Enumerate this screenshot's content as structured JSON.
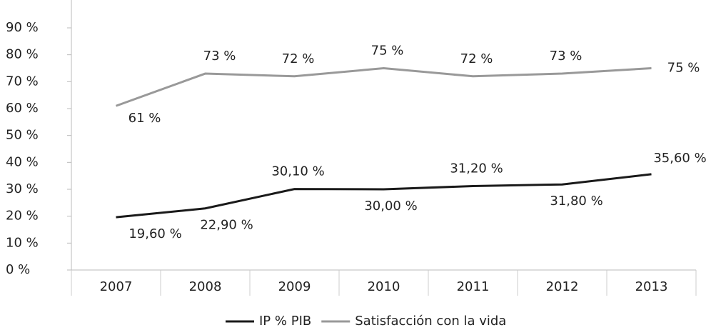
{
  "chart_data": {
    "type": "line",
    "categories": [
      "2007",
      "2008",
      "2009",
      "2010",
      "2011",
      "2012",
      "2013"
    ],
    "series": [
      {
        "name": "IP % PIB",
        "color": "#1a1a1a",
        "values": [
          19.6,
          22.9,
          30.1,
          30.0,
          31.2,
          31.8,
          35.6
        ],
        "value_labels": [
          "19,60 %",
          "22,90 %",
          "30,10 %",
          "30,00 %",
          "31,20 %",
          "31,80 %",
          "35,60 %"
        ]
      },
      {
        "name": "Satisfacción con la vida",
        "color": "#999999",
        "values": [
          61,
          73,
          72,
          75,
          72,
          73,
          75
        ],
        "value_labels": [
          "61 %",
          "73 %",
          "72 %",
          "75 %",
          "72 %",
          "73 %",
          "75 %"
        ]
      }
    ],
    "ylim": [
      0,
      90
    ],
    "yticks": [
      {
        "value": 0,
        "label": "0 %"
      },
      {
        "value": 10,
        "label": "10 %"
      },
      {
        "value": 20,
        "label": "20 %"
      },
      {
        "value": 30,
        "label": "30 %"
      },
      {
        "value": 40,
        "label": "40 %"
      },
      {
        "value": 50,
        "label": "50 %"
      },
      {
        "value": 60,
        "label": "60 %"
      },
      {
        "value": 70,
        "label": "70 %"
      },
      {
        "value": 80,
        "label": "80 %"
      },
      {
        "value": 90,
        "label": "90 %"
      }
    ],
    "grid": false,
    "legend": "bottom"
  }
}
